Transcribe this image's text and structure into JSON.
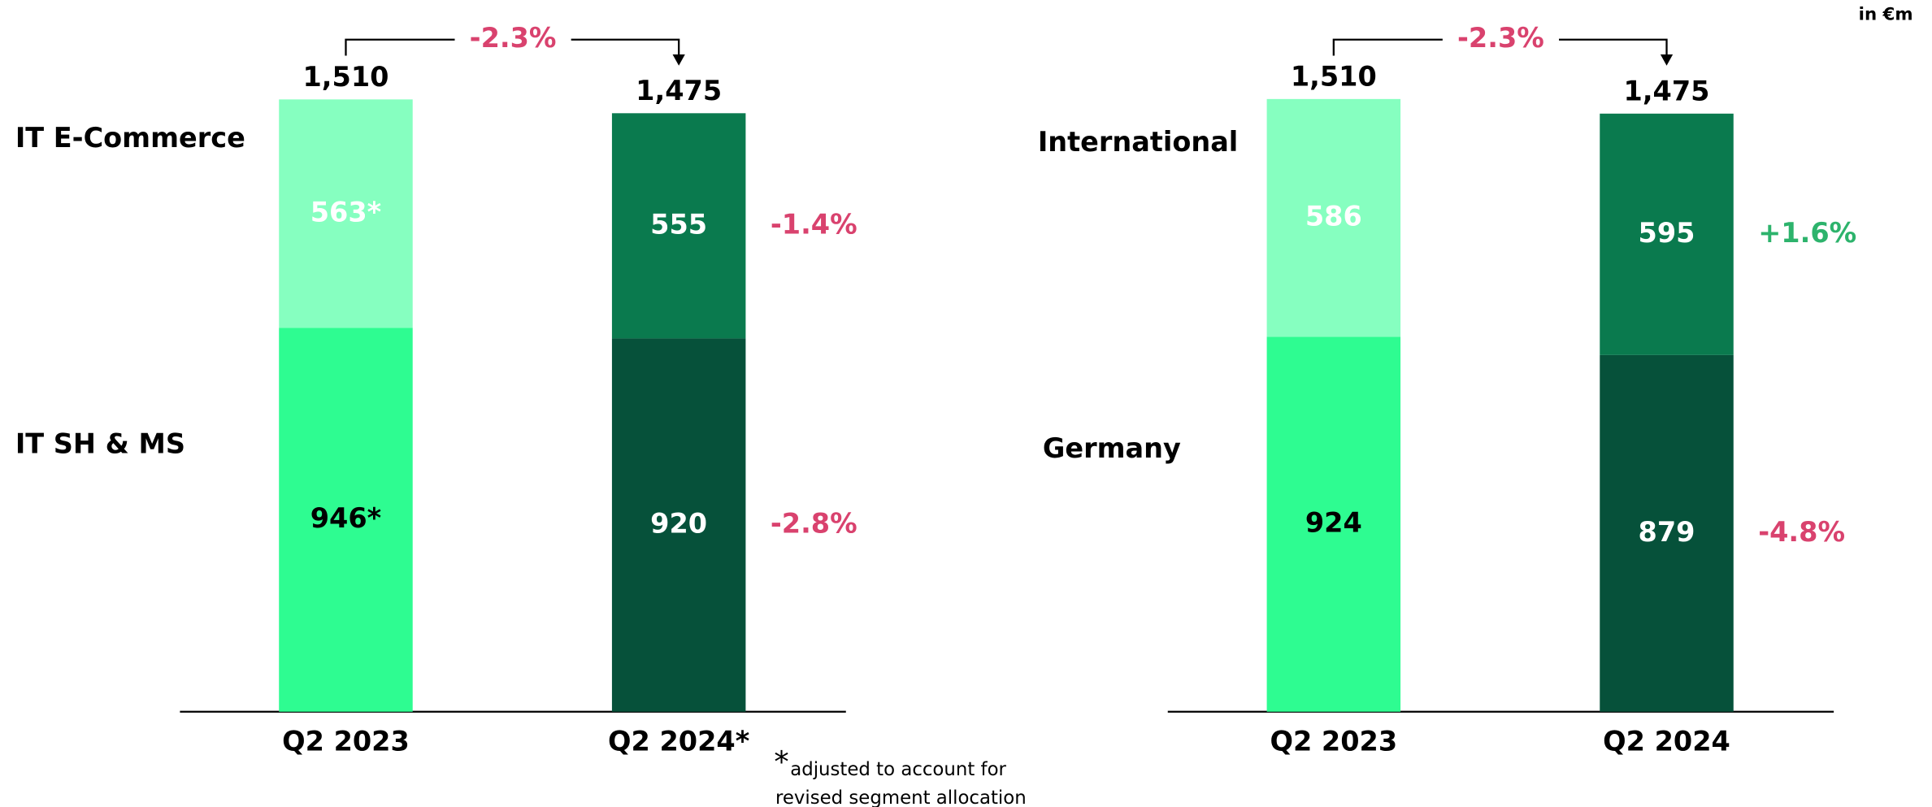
{
  "unit_note": "in €m",
  "chart_data": [
    {
      "type": "bar",
      "stacked": true,
      "categories": [
        "Q2 2023",
        "Q2 2024*"
      ],
      "series": [
        {
          "name": "IT SH & MS",
          "colors": [
            "#2efc91",
            "#06513a"
          ],
          "label_colors": [
            "#000000",
            "#ffffff"
          ],
          "values": [
            946,
            920
          ],
          "value_labels": [
            "946*",
            "920"
          ],
          "change": -2.8,
          "change_label": "-2.8%",
          "change_color": "#d9426e"
        },
        {
          "name": "IT E-Commerce",
          "colors": [
            "#86ffc0",
            "#0a7a4e"
          ],
          "label_colors": [
            "#ffffff",
            "#ffffff"
          ],
          "values": [
            563,
            555
          ],
          "value_labels": [
            "563*",
            "555"
          ],
          "change": -1.4,
          "change_label": "-1.4%",
          "change_color": "#d9426e"
        }
      ],
      "total_values": [
        1510,
        1475
      ],
      "total_labels": [
        "1,510",
        "1,475"
      ],
      "total_change": -2.3,
      "total_change_label": "-2.3%",
      "total_change_color": "#d9426e",
      "footnote": {
        "mark": "*",
        "lines": [
          "adjusted to account for",
          "revised segment allocation"
        ]
      }
    },
    {
      "type": "bar",
      "stacked": true,
      "categories": [
        "Q2 2023",
        "Q2 2024"
      ],
      "series": [
        {
          "name": "Germany",
          "colors": [
            "#2efc91",
            "#06513a"
          ],
          "label_colors": [
            "#000000",
            "#ffffff"
          ],
          "values": [
            924,
            879
          ],
          "change": -4.8,
          "change_label": "-4.8%",
          "change_color": "#d9426e"
        },
        {
          "name": "International",
          "colors": [
            "#86ffc0",
            "#0a7a4e"
          ],
          "label_colors": [
            "#ffffff",
            "#ffffff"
          ],
          "values": [
            586,
            595
          ],
          "change": 1.6,
          "change_label": "+1.6%",
          "change_color": "#2db36c"
        }
      ],
      "total_values": [
        1510,
        1475
      ],
      "total_labels": [
        "1,510",
        "1,475"
      ],
      "total_change": -2.3,
      "total_change_label": "-2.3%",
      "total_change_color": "#d9426e"
    }
  ]
}
